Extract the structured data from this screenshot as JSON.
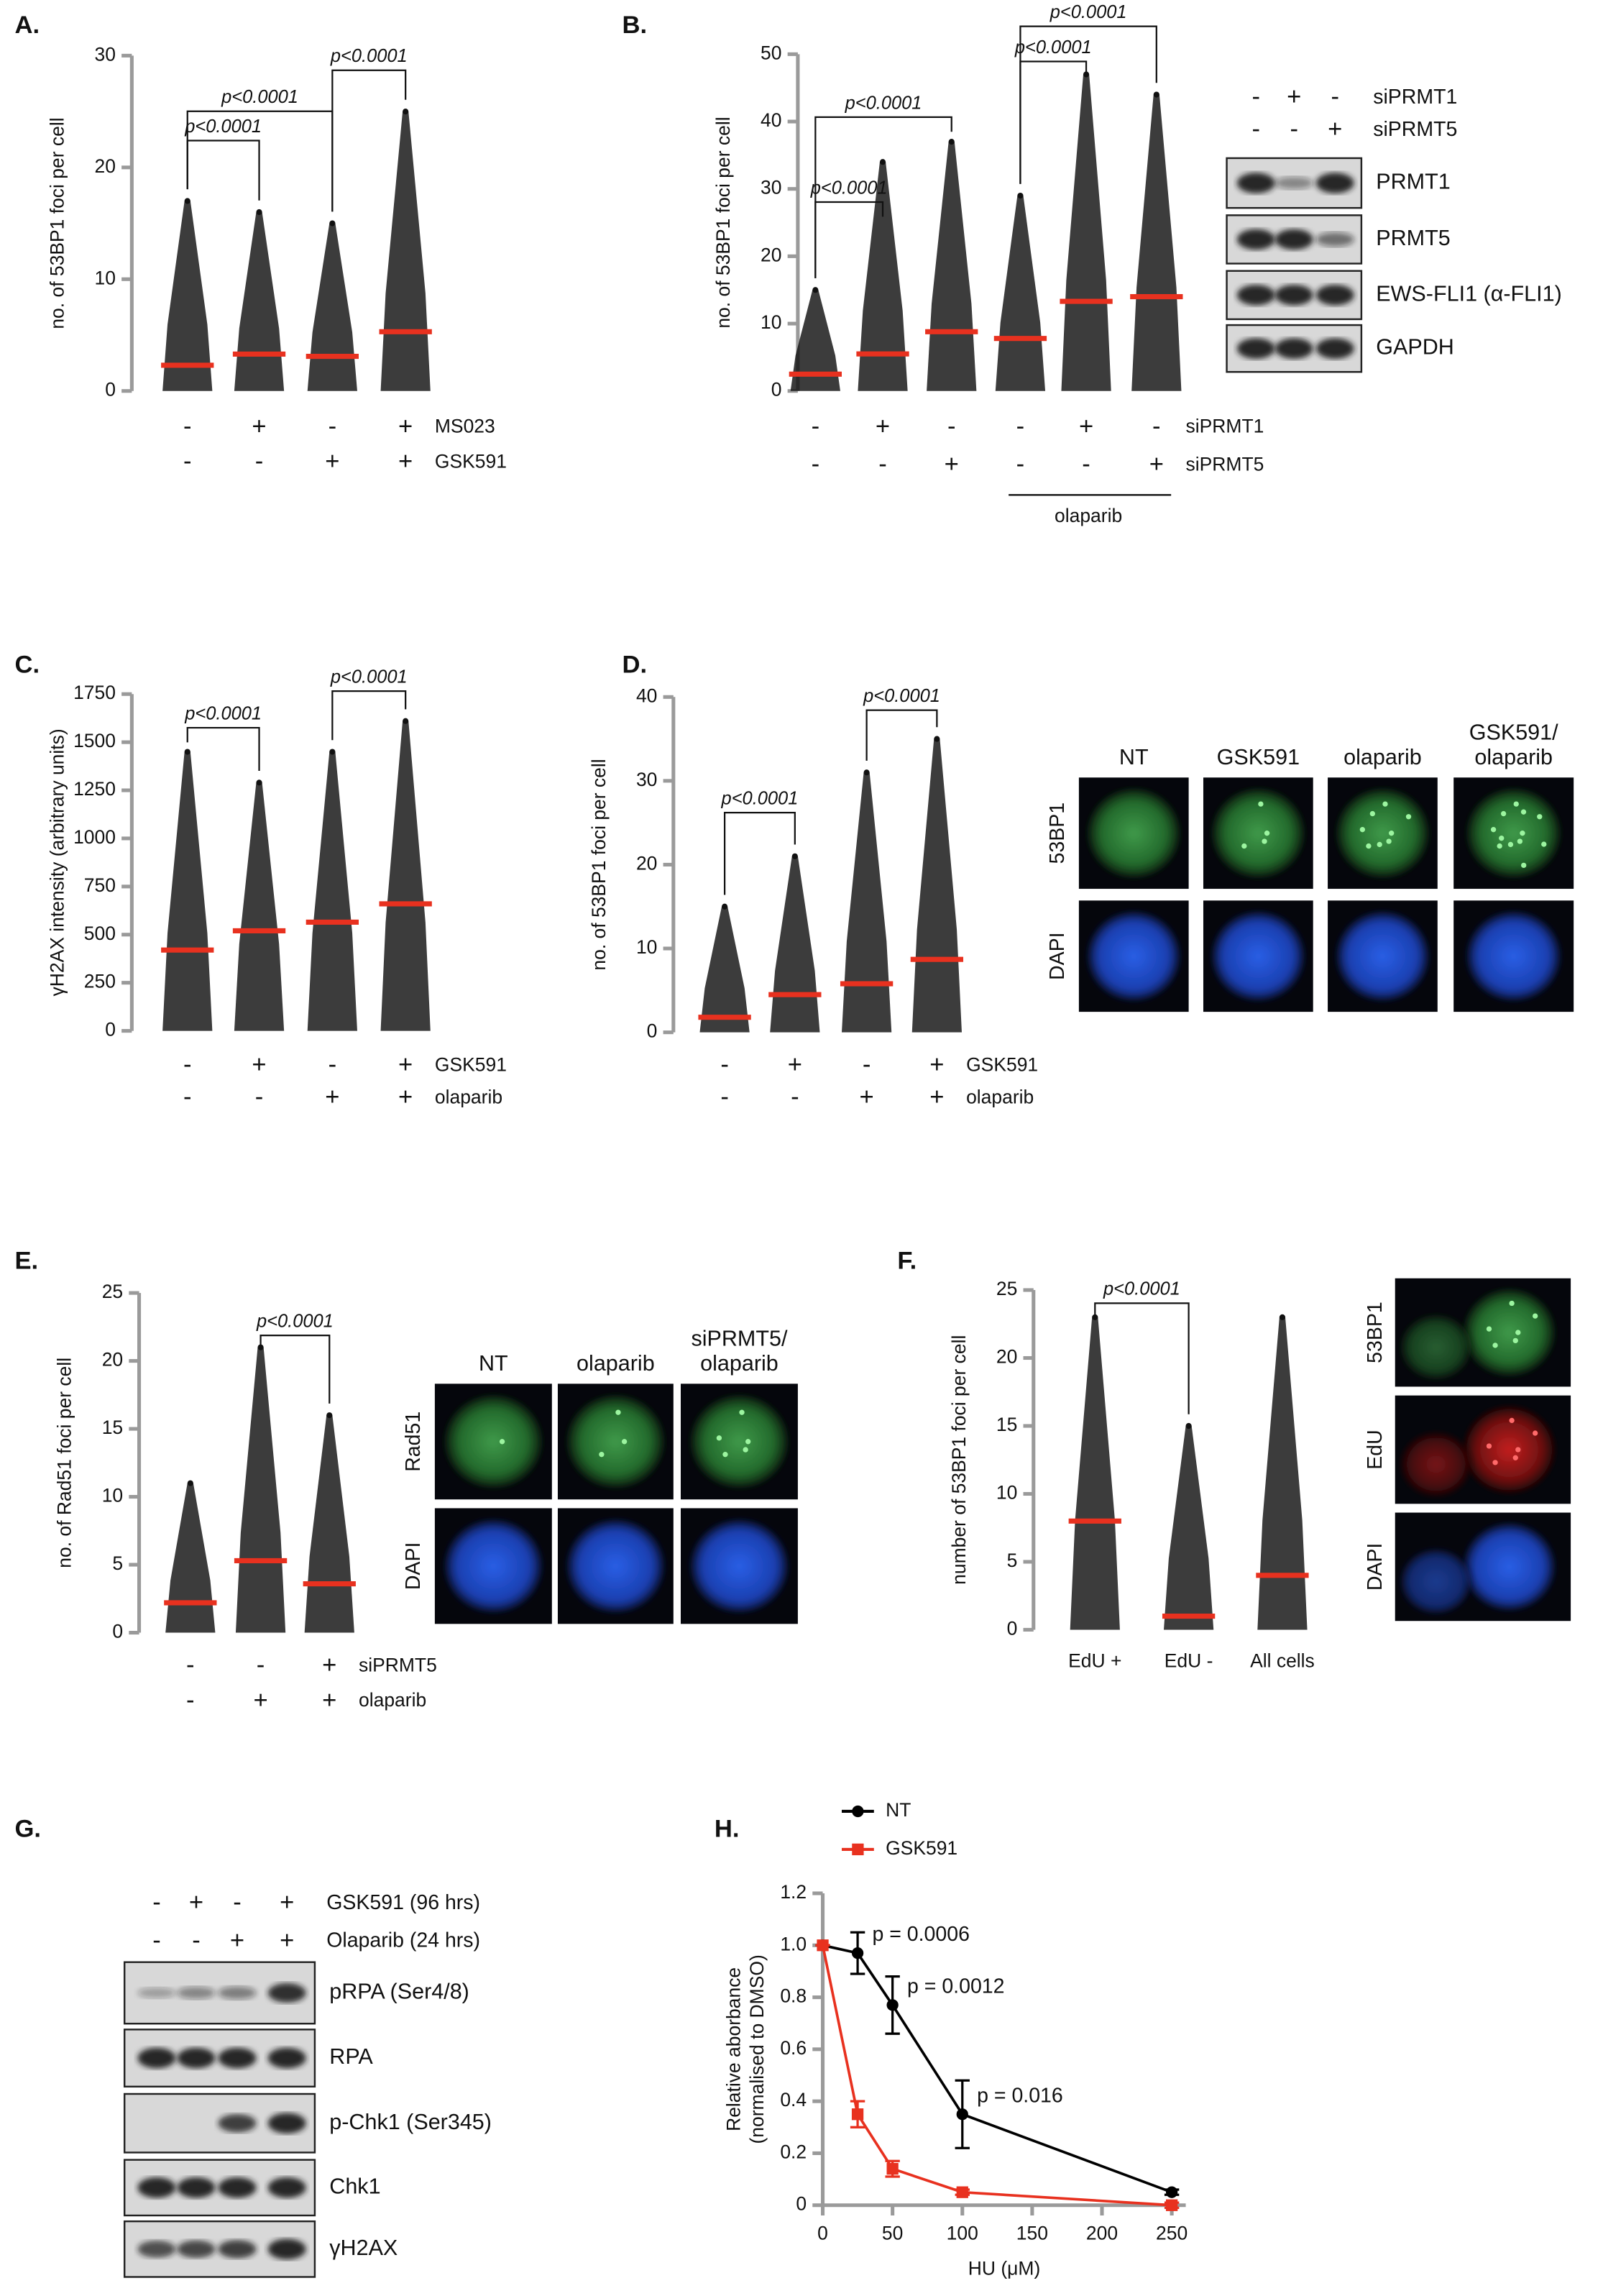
{
  "chart_data": [
    {
      "type": "dotplot",
      "label": "A.",
      "y_label": "no. of 53BP1 foci per cell",
      "ylim": [
        0,
        30
      ],
      "yticks": [
        0,
        10,
        20,
        30
      ],
      "values": [
        2.3,
        3.3,
        3.1,
        5.3
      ],
      "max": [
        17,
        16,
        15,
        25
      ],
      "mean_color": "#e8311f",
      "color": "#111111",
      "conditions": [
        {
          "name": "MS023",
          "signs": [
            "-",
            "+",
            "-",
            "+"
          ]
        },
        {
          "name": "GSK591",
          "signs": [
            "-",
            "-",
            "+",
            "+"
          ]
        }
      ],
      "significance": [
        "p<0.0001",
        "p<0.0001",
        "p<0.0001"
      ]
    },
    {
      "type": "dotplot",
      "label": "B.",
      "y_label": "no. of 53BP1 foci per cell",
      "ylim": [
        0,
        50
      ],
      "yticks": [
        0,
        10,
        20,
        30,
        40,
        50
      ],
      "values": [
        2.5,
        5.5,
        8.8,
        7.8,
        13.3,
        14.0
      ],
      "max": [
        15,
        34,
        37,
        29,
        47,
        44
      ],
      "mean_color": "#e8311f",
      "color": "#111111",
      "conditions": [
        {
          "name": "siPRMT1",
          "signs": [
            "-",
            "+",
            "-",
            "-",
            "+",
            "-"
          ]
        },
        {
          "name": "siPRMT5",
          "signs": [
            "-",
            "-",
            "+",
            "-",
            "-",
            "+"
          ]
        }
      ],
      "group_label": "olaparib",
      "significance": [
        "p<0.0001",
        "p<0.0001",
        "p<0.0001",
        "p<0.0001"
      ]
    },
    {
      "type": "dotplot",
      "label": "C.",
      "y_label": "γH2AX intensity (arbitrary units)",
      "ylim": [
        0,
        1750
      ],
      "yticks": [
        0,
        250,
        500,
        750,
        1000,
        1250,
        1500,
        1750
      ],
      "values": [
        420,
        520,
        565,
        660
      ],
      "max": [
        1450,
        1290,
        1450,
        1610
      ],
      "mean_color": "#e8311f",
      "color": "#111111",
      "conditions": [
        {
          "name": "GSK591",
          "signs": [
            "-",
            "+",
            "-",
            "+"
          ]
        },
        {
          "name": "olaparib",
          "signs": [
            "-",
            "-",
            "+",
            "+"
          ]
        }
      ],
      "significance": [
        "p<0.0001",
        "p<0.0001"
      ]
    },
    {
      "type": "dotplot",
      "label": "D.",
      "y_label": "no. of 53BP1 foci per cell",
      "ylim": [
        0,
        40
      ],
      "yticks": [
        0,
        10,
        20,
        30,
        40
      ],
      "values": [
        1.8,
        4.5,
        5.8,
        8.7
      ],
      "max": [
        15,
        21,
        31,
        35
      ],
      "mean_color": "#e8311f",
      "color": "#111111",
      "conditions": [
        {
          "name": "GSK591",
          "signs": [
            "-",
            "+",
            "-",
            "+"
          ]
        },
        {
          "name": "olaparib",
          "signs": [
            "-",
            "-",
            "+",
            "+"
          ]
        }
      ],
      "significance": [
        "p<0.0001",
        "p<0.0001"
      ]
    },
    {
      "type": "dotplot",
      "label": "E.",
      "y_label": "no. of Rad51 foci per cell",
      "ylim": [
        0,
        25
      ],
      "yticks": [
        0,
        5,
        10,
        15,
        20,
        25
      ],
      "values": [
        2.2,
        5.3,
        3.6
      ],
      "max": [
        11,
        21,
        16
      ],
      "mean_color": "#e8311f",
      "color": "#111111",
      "conditions": [
        {
          "name": "siPRMT5",
          "signs": [
            "-",
            "-",
            "+"
          ]
        },
        {
          "name": "olaparib",
          "signs": [
            "-",
            "+",
            "+"
          ]
        }
      ],
      "significance": [
        "p<0.0001"
      ]
    },
    {
      "type": "dotplot",
      "label": "F.",
      "y_label": "number of 53BP1 foci per cell",
      "ylim": [
        0,
        25
      ],
      "yticks": [
        0,
        5,
        10,
        15,
        20,
        25
      ],
      "categories": [
        "EdU +",
        "EdU -",
        "All cells"
      ],
      "values": [
        8,
        1,
        4
      ],
      "max": [
        23,
        15,
        23
      ],
      "mean_color": "#e8311f",
      "color": "#111111",
      "significance": [
        "p<0.0001"
      ]
    },
    {
      "type": "line",
      "label": "H.",
      "x_label": "HU (μM)",
      "y_label": [
        "Relative aborbance",
        "(normalised to DMSO)"
      ],
      "xlim": [
        0,
        260
      ],
      "xticks": [
        0,
        50,
        100,
        150,
        200,
        250
      ],
      "ylim": [
        0,
        1.2
      ],
      "yticks": [
        0,
        0.2,
        0.4,
        0.6,
        0.8,
        {
          "value": 1,
          "label": "1.0"
        },
        1.2
      ],
      "x": [
        0,
        25,
        50,
        100,
        250
      ],
      "series": [
        {
          "name": "NT",
          "color": "#000000",
          "marker": "circle",
          "values": [
            1.0,
            0.97,
            0.77,
            0.35,
            0.05
          ],
          "errors": [
            0,
            0.08,
            0.11,
            0.13,
            0.01
          ]
        },
        {
          "name": "GSK591",
          "color": "#e8311f",
          "marker": "square",
          "values": [
            1.0,
            0.35,
            0.14,
            0.05,
            0.0
          ],
          "errors": [
            0,
            0.05,
            0.03,
            0.01,
            0.01
          ]
        }
      ],
      "annotations": [
        "p = 0.0006",
        "p = 0.0012",
        "p = 0.016"
      ]
    }
  ],
  "blots": [
    {
      "header": [
        {
          "name": "siPRMT1",
          "signs": [
            "-",
            "+",
            "-"
          ]
        },
        {
          "name": "siPRMT5",
          "signs": [
            "-",
            "-",
            "+"
          ]
        }
      ],
      "rows": [
        "PRMT1",
        "PRMT5",
        "EWS-FLI1 (α-FLI1)",
        "GAPDH"
      ]
    },
    {
      "label": "G.",
      "header": [
        {
          "name": "GSK591 (96 hrs)",
          "signs": [
            "-",
            "+",
            "-",
            "+"
          ]
        },
        {
          "name": "Olaparib (24 hrs)",
          "signs": [
            "-",
            "-",
            "+",
            "+"
          ]
        }
      ],
      "rows": [
        "pRPA (Ser4/8)",
        "RPA",
        "p-Chk1 (Ser345)",
        "Chk1",
        "γH2AX"
      ]
    }
  ],
  "images": [
    {
      "columns": [
        [
          "NT"
        ],
        [
          "GSK591"
        ],
        [
          "olaparib"
        ],
        [
          "GSK591/",
          "olaparib"
        ]
      ],
      "rows": [
        "53BP1",
        "DAPI"
      ]
    },
    {
      "columns": [
        [
          "NT"
        ],
        [
          "olaparib"
        ],
        [
          "siPRMT5/",
          "olaparib"
        ]
      ],
      "rows": [
        "Rad51",
        "DAPI"
      ]
    },
    {
      "columns": [],
      "rows": [
        "53BP1",
        "EdU",
        "DAPI"
      ]
    }
  ]
}
